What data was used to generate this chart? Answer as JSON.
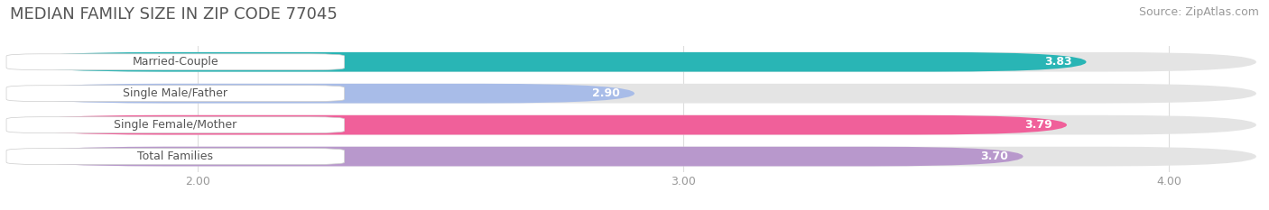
{
  "title": "MEDIAN FAMILY SIZE IN ZIP CODE 77045",
  "source": "Source: ZipAtlas.com",
  "categories": [
    "Married-Couple",
    "Single Male/Father",
    "Single Female/Mother",
    "Total Families"
  ],
  "values": [
    3.83,
    2.9,
    3.79,
    3.7
  ],
  "bar_colors": [
    "#29b5b5",
    "#a8bce8",
    "#f0609a",
    "#b898cc"
  ],
  "xlim_min": 1.62,
  "xlim_max": 4.18,
  "xticks": [
    2.0,
    3.0,
    4.0
  ],
  "xtick_labels": [
    "2.00",
    "3.00",
    "4.00"
  ],
  "bg_color": "#ffffff",
  "bar_bg_color": "#e4e4e4",
  "title_fontsize": 13,
  "source_fontsize": 9,
  "label_fontsize": 9,
  "value_fontsize": 9,
  "bar_height": 0.62,
  "bar_gap": 0.38
}
